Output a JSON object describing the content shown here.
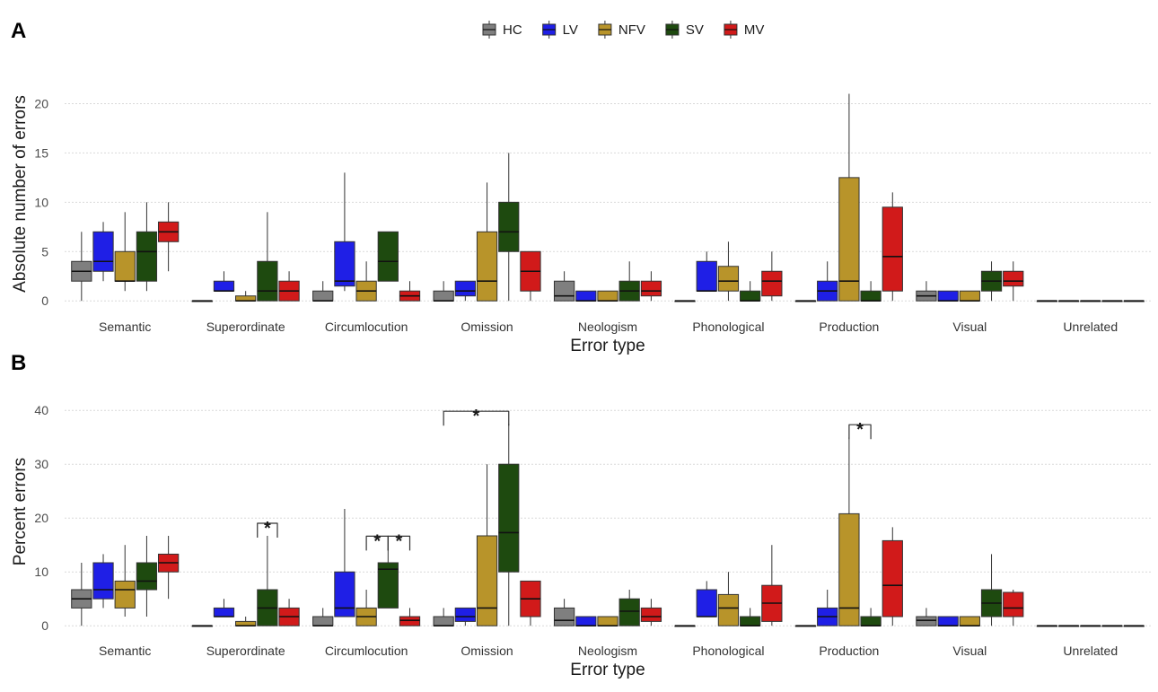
{
  "chart_data": [
    {
      "type": "box",
      "panel_label": "A",
      "xlabel": "Error type",
      "ylabel": "Absolute number of errors",
      "ylim": [
        -0.8,
        22.5
      ],
      "yticks": [
        0,
        5,
        10,
        15,
        20
      ],
      "grid": true,
      "legend_position": "top",
      "categories": [
        "Semantic",
        "Superordinate",
        "Circumlocution",
        "Omission",
        "Neologism",
        "Phonological",
        "Production",
        "Visual",
        "Unrelated"
      ],
      "series": [
        {
          "name": "HC",
          "color": "#7f7f7f",
          "boxes": [
            {
              "min": 0,
              "q1": 2,
              "median": 3,
              "q3": 4,
              "max": 7
            },
            {
              "min": 0,
              "q1": 0,
              "median": 0,
              "q3": 0,
              "max": 0
            },
            {
              "min": 0,
              "q1": 0,
              "median": 0,
              "q3": 1,
              "max": 2
            },
            {
              "min": 0,
              "q1": 0,
              "median": 0,
              "q3": 1,
              "max": 2
            },
            {
              "min": 0,
              "q1": 0,
              "median": 0.5,
              "q3": 2,
              "max": 3
            },
            {
              "min": 0,
              "q1": 0,
              "median": 0,
              "q3": 0,
              "max": 0
            },
            {
              "min": 0,
              "q1": 0,
              "median": 0,
              "q3": 0,
              "max": 0
            },
            {
              "min": 0,
              "q1": 0,
              "median": 0.5,
              "q3": 1,
              "max": 2
            },
            {
              "min": 0,
              "q1": 0,
              "median": 0,
              "q3": 0,
              "max": 0
            }
          ]
        },
        {
          "name": "LV",
          "color": "#1f1fe6",
          "boxes": [
            {
              "min": 2,
              "q1": 3,
              "median": 4,
              "q3": 7,
              "max": 8
            },
            {
              "min": 1,
              "q1": 1,
              "median": 1,
              "q3": 2,
              "max": 3
            },
            {
              "min": 1,
              "q1": 1.5,
              "median": 2,
              "q3": 6,
              "max": 13
            },
            {
              "min": 0,
              "q1": 0.5,
              "median": 1,
              "q3": 2,
              "max": 2
            },
            {
              "min": 0,
              "q1": 0,
              "median": 0,
              "q3": 1,
              "max": 1
            },
            {
              "min": 1,
              "q1": 1,
              "median": 1,
              "q3": 4,
              "max": 5
            },
            {
              "min": 0,
              "q1": 0,
              "median": 1,
              "q3": 2,
              "max": 4
            },
            {
              "min": 0,
              "q1": 0,
              "median": 0,
              "q3": 1,
              "max": 1
            },
            {
              "min": 0,
              "q1": 0,
              "median": 0,
              "q3": 0,
              "max": 0
            }
          ]
        },
        {
          "name": "NFV",
          "color": "#b8942a",
          "boxes": [
            {
              "min": 1,
              "q1": 2,
              "median": 2,
              "q3": 5,
              "max": 9
            },
            {
              "min": 0,
              "q1": 0,
              "median": 0,
              "q3": 0.5,
              "max": 1
            },
            {
              "min": 0,
              "q1": 0,
              "median": 1,
              "q3": 2,
              "max": 4
            },
            {
              "min": 0,
              "q1": 0,
              "median": 2,
              "q3": 7,
              "max": 12
            },
            {
              "min": 0,
              "q1": 0,
              "median": 0,
              "q3": 1,
              "max": 1
            },
            {
              "min": 0,
              "q1": 1,
              "median": 2,
              "q3": 3.5,
              "max": 6
            },
            {
              "min": 0,
              "q1": 0,
              "median": 2,
              "q3": 12.5,
              "max": 21
            },
            {
              "min": 0,
              "q1": 0,
              "median": 0,
              "q3": 1,
              "max": 1
            },
            {
              "min": 0,
              "q1": 0,
              "median": 0,
              "q3": 0,
              "max": 0
            }
          ]
        },
        {
          "name": "SV",
          "color": "#1e4a0f",
          "boxes": [
            {
              "min": 1,
              "q1": 2,
              "median": 5,
              "q3": 7,
              "max": 10
            },
            {
              "min": 0,
              "q1": 0,
              "median": 1,
              "q3": 4,
              "max": 9
            },
            {
              "min": 2,
              "q1": 2,
              "median": 4,
              "q3": 7,
              "max": 7
            },
            {
              "min": 0,
              "q1": 5,
              "median": 7,
              "q3": 10,
              "max": 15
            },
            {
              "min": 0,
              "q1": 0,
              "median": 1,
              "q3": 2,
              "max": 4
            },
            {
              "min": 0,
              "q1": 0,
              "median": 0,
              "q3": 1,
              "max": 2
            },
            {
              "min": 0,
              "q1": 0,
              "median": 0,
              "q3": 1,
              "max": 2
            },
            {
              "min": 0,
              "q1": 1,
              "median": 2,
              "q3": 3,
              "max": 4
            },
            {
              "min": 0,
              "q1": 0,
              "median": 0,
              "q3": 0,
              "max": 0
            }
          ]
        },
        {
          "name": "MV",
          "color": "#d11a1a",
          "boxes": [
            {
              "min": 3,
              "q1": 6,
              "median": 7,
              "q3": 8,
              "max": 10
            },
            {
              "min": 0,
              "q1": 0,
              "median": 1,
              "q3": 2,
              "max": 3
            },
            {
              "min": 0,
              "q1": 0,
              "median": 0.5,
              "q3": 1,
              "max": 2
            },
            {
              "min": 0,
              "q1": 1,
              "median": 3,
              "q3": 5,
              "max": 5
            },
            {
              "min": 0,
              "q1": 0.5,
              "median": 1,
              "q3": 2,
              "max": 3
            },
            {
              "min": 0,
              "q1": 0.5,
              "median": 2,
              "q3": 3,
              "max": 5
            },
            {
              "min": 0,
              "q1": 1,
              "median": 4.5,
              "q3": 9.5,
              "max": 11
            },
            {
              "min": 0,
              "q1": 1.5,
              "median": 2,
              "q3": 3,
              "max": 4
            },
            {
              "min": 0,
              "q1": 0,
              "median": 0,
              "q3": 0,
              "max": 0
            }
          ]
        }
      ],
      "annotations": []
    },
    {
      "type": "box",
      "panel_label": "B",
      "xlabel": "Error type",
      "ylabel": "Percent errors",
      "ylim": [
        -1.8,
        44.2
      ],
      "yticks": [
        0,
        10,
        20,
        30,
        40
      ],
      "grid": true,
      "categories": [
        "Semantic",
        "Superordinate",
        "Circumlocution",
        "Omission",
        "Neologism",
        "Phonological",
        "Production",
        "Visual",
        "Unrelated"
      ],
      "series": [
        {
          "name": "HC",
          "color": "#7f7f7f",
          "boxes": [
            {
              "min": 0,
              "q1": 3.3,
              "median": 5,
              "q3": 6.7,
              "max": 11.7
            },
            {
              "min": 0,
              "q1": 0,
              "median": 0,
              "q3": 0,
              "max": 0
            },
            {
              "min": 0,
              "q1": 0,
              "median": 0,
              "q3": 1.7,
              "max": 3.3
            },
            {
              "min": 0,
              "q1": 0,
              "median": 0,
              "q3": 1.7,
              "max": 3.3
            },
            {
              "min": 0,
              "q1": 0,
              "median": 1,
              "q3": 3.3,
              "max": 5
            },
            {
              "min": 0,
              "q1": 0,
              "median": 0,
              "q3": 0,
              "max": 0
            },
            {
              "min": 0,
              "q1": 0,
              "median": 0,
              "q3": 0,
              "max": 0
            },
            {
              "min": 0,
              "q1": 0,
              "median": 1,
              "q3": 1.7,
              "max": 3.3
            },
            {
              "min": 0,
              "q1": 0,
              "median": 0,
              "q3": 0,
              "max": 0
            }
          ]
        },
        {
          "name": "LV",
          "color": "#1f1fe6",
          "boxes": [
            {
              "min": 3.3,
              "q1": 5,
              "median": 6.7,
              "q3": 11.7,
              "max": 13.3
            },
            {
              "min": 1.7,
              "q1": 1.7,
              "median": 1.7,
              "q3": 3.3,
              "max": 5
            },
            {
              "min": 1.7,
              "q1": 1.7,
              "median": 3.3,
              "q3": 10,
              "max": 21.7
            },
            {
              "min": 0,
              "q1": 0.8,
              "median": 1.7,
              "q3": 3.3,
              "max": 3.3
            },
            {
              "min": 0,
              "q1": 0,
              "median": 0,
              "q3": 1.7,
              "max": 1.7
            },
            {
              "min": 1.7,
              "q1": 1.7,
              "median": 1.7,
              "q3": 6.7,
              "max": 8.3
            },
            {
              "min": 0,
              "q1": 0,
              "median": 1.7,
              "q3": 3.3,
              "max": 6.7
            },
            {
              "min": 0,
              "q1": 0,
              "median": 0,
              "q3": 1.7,
              "max": 1.7
            },
            {
              "min": 0,
              "q1": 0,
              "median": 0,
              "q3": 0,
              "max": 0
            }
          ]
        },
        {
          "name": "NFV",
          "color": "#b8942a",
          "boxes": [
            {
              "min": 1.7,
              "q1": 3.3,
              "median": 6.7,
              "q3": 8.3,
              "max": 15
            },
            {
              "min": 0,
              "q1": 0,
              "median": 0,
              "q3": 0.8,
              "max": 1.7
            },
            {
              "min": 0,
              "q1": 0,
              "median": 1.7,
              "q3": 3.3,
              "max": 6.7
            },
            {
              "min": 0,
              "q1": 0,
              "median": 3.3,
              "q3": 16.7,
              "max": 30
            },
            {
              "min": 0,
              "q1": 0,
              "median": 0,
              "q3": 1.7,
              "max": 1.7
            },
            {
              "min": 0,
              "q1": 0,
              "median": 3.3,
              "q3": 5.8,
              "max": 10
            },
            {
              "min": 0,
              "q1": 0,
              "median": 3.3,
              "q3": 20.8,
              "max": 35
            },
            {
              "min": 0,
              "q1": 0,
              "median": 0,
              "q3": 1.7,
              "max": 1.7
            },
            {
              "min": 0,
              "q1": 0,
              "median": 0,
              "q3": 0,
              "max": 0
            }
          ]
        },
        {
          "name": "SV",
          "color": "#1e4a0f",
          "boxes": [
            {
              "min": 1.7,
              "q1": 6.7,
              "median": 8.3,
              "q3": 11.7,
              "max": 16.7
            },
            {
              "min": 0,
              "q1": 0,
              "median": 3.3,
              "q3": 6.7,
              "max": 16.7
            },
            {
              "min": 3.3,
              "q1": 3.3,
              "median": 10.5,
              "q3": 11.7,
              "max": 14.3
            },
            {
              "min": 0,
              "q1": 10,
              "median": 17.3,
              "q3": 30,
              "max": 37.5
            },
            {
              "min": 0,
              "q1": 0,
              "median": 2.7,
              "q3": 5,
              "max": 6.7
            },
            {
              "min": 0,
              "q1": 0,
              "median": 0,
              "q3": 1.7,
              "max": 3.3
            },
            {
              "min": 0,
              "q1": 0,
              "median": 0,
              "q3": 1.7,
              "max": 3.3
            },
            {
              "min": 0,
              "q1": 1.7,
              "median": 4.2,
              "q3": 6.7,
              "max": 13.3
            },
            {
              "min": 0,
              "q1": 0,
              "median": 0,
              "q3": 0,
              "max": 0
            }
          ]
        },
        {
          "name": "MV",
          "color": "#d11a1a",
          "boxes": [
            {
              "min": 5,
              "q1": 10,
              "median": 11.7,
              "q3": 13.3,
              "max": 16.7
            },
            {
              "min": 0,
              "q1": 0,
              "median": 1.7,
              "q3": 3.3,
              "max": 5
            },
            {
              "min": 0,
              "q1": 0,
              "median": 1,
              "q3": 1.7,
              "max": 3.3
            },
            {
              "min": 0,
              "q1": 1.7,
              "median": 5,
              "q3": 8.3,
              "max": 8.3
            },
            {
              "min": 0,
              "q1": 0.8,
              "median": 1.7,
              "q3": 3.3,
              "max": 5
            },
            {
              "min": 0,
              "q1": 0.8,
              "median": 4.2,
              "q3": 7.5,
              "max": 15
            },
            {
              "min": 0,
              "q1": 1.7,
              "median": 7.5,
              "q3": 15.8,
              "max": 18.3
            },
            {
              "min": 0,
              "q1": 1.7,
              "median": 3.3,
              "q3": 6.2,
              "max": 6.7
            },
            {
              "min": 0,
              "q1": 0,
              "median": 0,
              "q3": 0,
              "max": 0
            }
          ]
        }
      ],
      "annotations": [
        {
          "category": "Superordinate",
          "from_series": "SV",
          "to_series": "SV",
          "label": "*"
        },
        {
          "category": "Circumlocution",
          "from_series": "NFV",
          "to_series": "SV",
          "label": "*"
        },
        {
          "category": "Circumlocution",
          "from_series": "SV",
          "to_series": "MV",
          "label": "*"
        },
        {
          "category": "Omission",
          "from_series": "HC",
          "to_series": "SV",
          "label": "*"
        },
        {
          "category": "Production",
          "from_series": "NFV",
          "to_series": "SV",
          "label": "*"
        }
      ]
    }
  ]
}
